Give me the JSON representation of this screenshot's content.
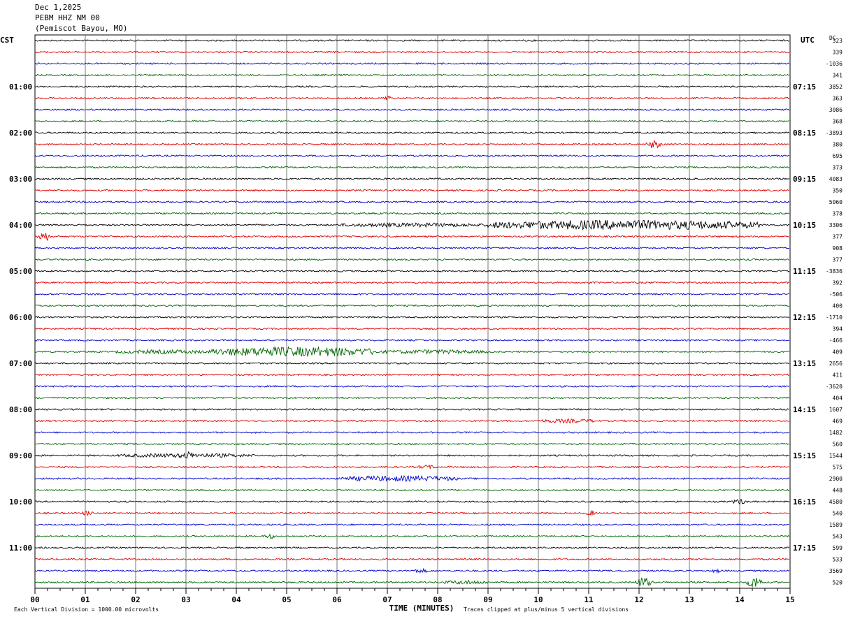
{
  "header": {
    "date": "Dec 1,2025",
    "station": "PEBM HHZ NM 00",
    "location": "(Pemiscot Bayou, MO)"
  },
  "labels": {
    "left_tz": "CST",
    "right_tz": "UTC",
    "dc": "DC",
    "x_axis_title": "TIME (MINUTES)",
    "scale_note": "Each Vertical Division = 1000.00 microvolts",
    "clip_note": "Traces clipped at plus/minus 5 vertical divisions"
  },
  "colors": {
    "trace_cycle": [
      "#000000",
      "#dd0000",
      "#0000cc",
      "#006600"
    ],
    "grid": "#555555"
  },
  "chart_data": {
    "type": "line",
    "title": "",
    "xlabel": "TIME (MINUTES)",
    "xlim": [
      0,
      15
    ],
    "x_ticks": [
      "00",
      "01",
      "02",
      "03",
      "04",
      "05",
      "06",
      "07",
      "08",
      "09",
      "10",
      "11",
      "12",
      "13",
      "14",
      "15"
    ],
    "rows_per_hour": 4,
    "row_count": 48,
    "left_hour_labels": [
      "01:00",
      "02:00",
      "03:00",
      "04:00",
      "05:00",
      "06:00",
      "07:00",
      "08:00",
      "09:00",
      "10:00",
      "11:00"
    ],
    "left_hour_label_rows": [
      4,
      8,
      12,
      16,
      20,
      24,
      28,
      32,
      36,
      40,
      44
    ],
    "right_hour_labels": [
      "07:15",
      "08:15",
      "09:15",
      "10:15",
      "11:15",
      "12:15",
      "13:15",
      "14:15",
      "15:15",
      "16:15",
      "17:15"
    ],
    "right_hour_label_rows": [
      4,
      8,
      12,
      16,
      20,
      24,
      28,
      32,
      36,
      40,
      44
    ],
    "dc_offsets": [
      "323",
      "339",
      "-1036",
      "341",
      "3852",
      "363",
      "3086",
      "368",
      "-3893",
      "380",
      "695",
      "373",
      "4083",
      "350",
      "5060",
      "378",
      "3306",
      "377",
      "908",
      "377",
      "-3836",
      "392",
      "-506",
      "400",
      "-1710",
      "394",
      "-466",
      "409",
      "2656",
      "411",
      "-3620",
      "404",
      "1607",
      "469",
      "1482",
      "560",
      "1544",
      "575",
      "2900",
      "448",
      "4580",
      "540",
      "1589",
      "543",
      "599",
      "533",
      "3569",
      "520"
    ],
    "events": [
      {
        "row": 5,
        "start_min": 6.9,
        "end_min": 7.1,
        "amp": 5
      },
      {
        "row": 9,
        "start_min": 12.1,
        "end_min": 12.5,
        "amp": 6
      },
      {
        "row": 16,
        "start_min": 6.0,
        "end_min": 9.0,
        "amp": 3
      },
      {
        "row": 16,
        "start_min": 9.0,
        "end_min": 14.4,
        "amp": 7
      },
      {
        "row": 17,
        "start_min": 0.0,
        "end_min": 0.35,
        "amp": 7
      },
      {
        "row": 27,
        "start_min": 1.6,
        "end_min": 3.5,
        "amp": 3
      },
      {
        "row": 27,
        "start_min": 3.5,
        "end_min": 6.8,
        "amp": 7
      },
      {
        "row": 27,
        "start_min": 6.8,
        "end_min": 9.0,
        "amp": 3
      },
      {
        "row": 33,
        "start_min": 10.0,
        "end_min": 11.2,
        "amp": 3
      },
      {
        "row": 36,
        "start_min": 1.6,
        "end_min": 4.4,
        "amp": 3
      },
      {
        "row": 36,
        "start_min": 2.9,
        "end_min": 3.2,
        "amp": 6
      },
      {
        "row": 37,
        "start_min": 7.5,
        "end_min": 8.1,
        "amp": 3
      },
      {
        "row": 38,
        "start_min": 6.0,
        "end_min": 8.4,
        "amp": 4
      },
      {
        "row": 40,
        "start_min": 13.8,
        "end_min": 14.2,
        "amp": 4
      },
      {
        "row": 41,
        "start_min": 0.9,
        "end_min": 1.2,
        "amp": 4
      },
      {
        "row": 41,
        "start_min": 10.9,
        "end_min": 11.2,
        "amp": 4
      },
      {
        "row": 43,
        "start_min": 4.5,
        "end_min": 4.8,
        "amp": 4
      },
      {
        "row": 46,
        "start_min": 7.4,
        "end_min": 7.9,
        "amp": 3
      },
      {
        "row": 46,
        "start_min": 13.4,
        "end_min": 13.7,
        "amp": 3
      },
      {
        "row": 47,
        "start_min": 11.9,
        "end_min": 12.3,
        "amp": 8
      },
      {
        "row": 47,
        "start_min": 14.1,
        "end_min": 14.5,
        "amp": 9
      },
      {
        "row": 47,
        "start_min": 8.1,
        "end_min": 9.0,
        "amp": 3
      }
    ]
  }
}
